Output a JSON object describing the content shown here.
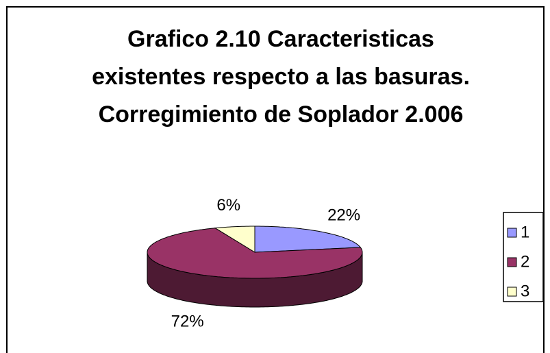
{
  "chart_data": {
    "type": "pie",
    "title": "Grafico 2.10 Caracteristicas existentes respecto a las basuras. Corregimiento de Soplador 2.006",
    "categories": [
      "1",
      "2",
      "3"
    ],
    "values": [
      22,
      72,
      6
    ],
    "value_labels": [
      "22%",
      "72%",
      "6%"
    ],
    "colors": [
      "#9999ff",
      "#993366",
      "#ffffcc"
    ],
    "legend": "right"
  }
}
